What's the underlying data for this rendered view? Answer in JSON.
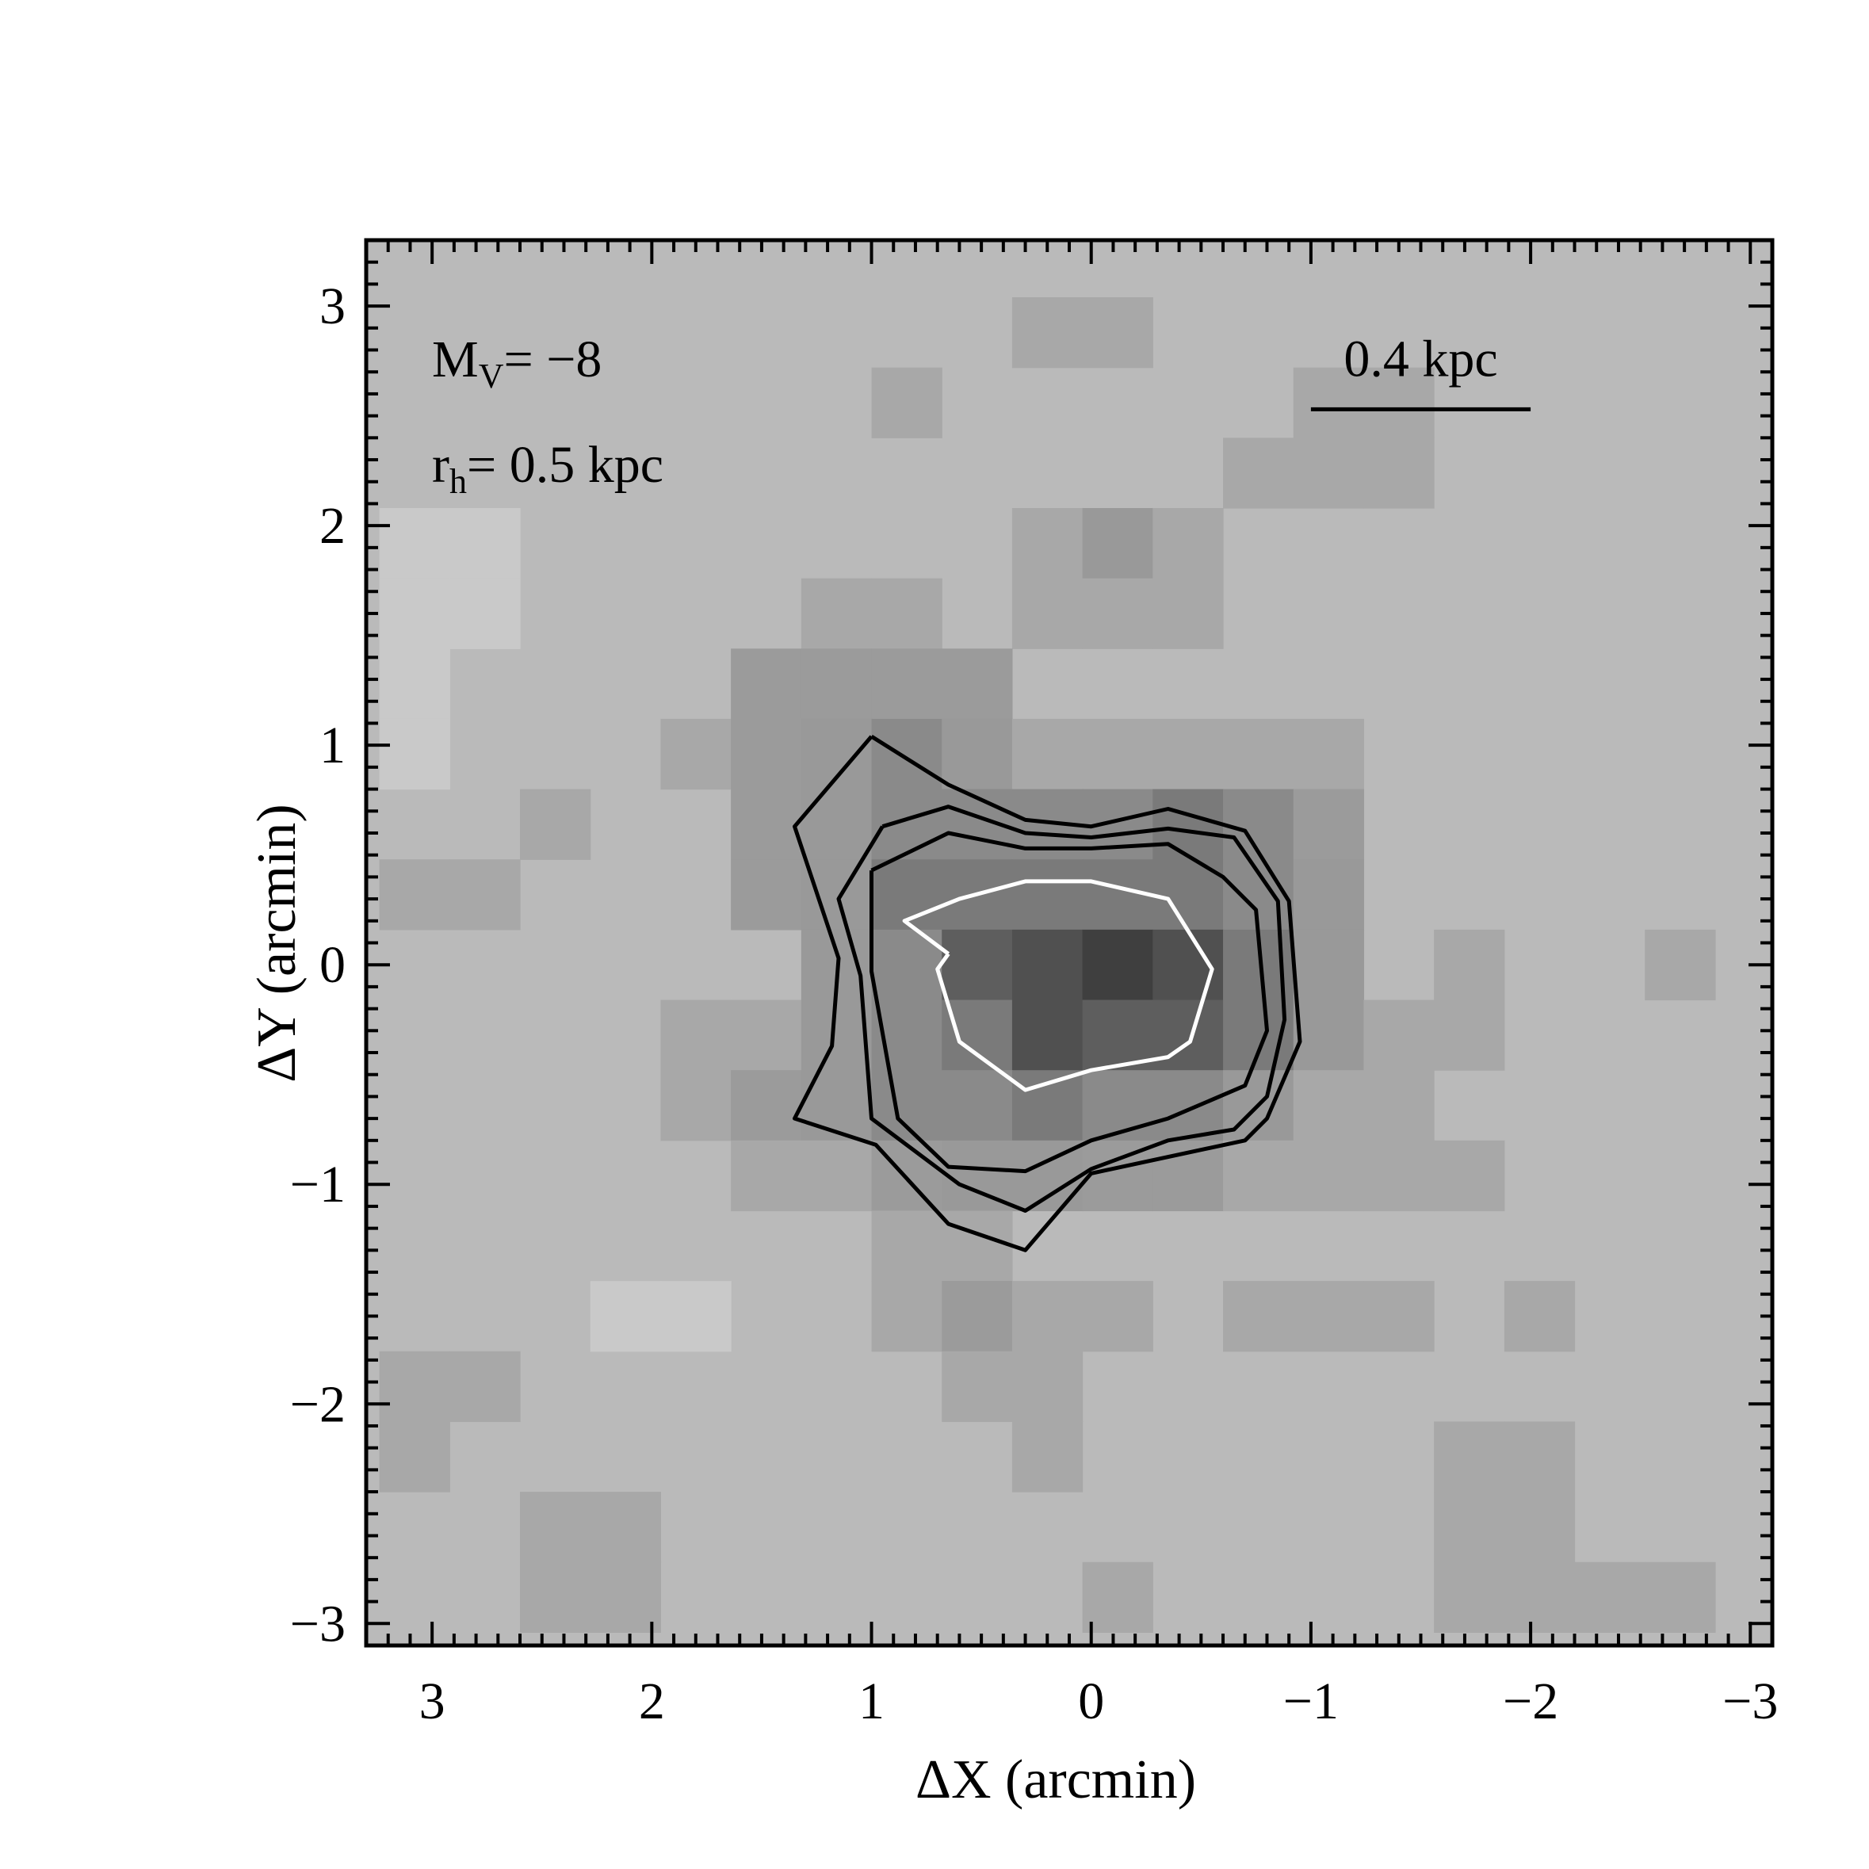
{
  "chart_data": {
    "type": "heatmap",
    "xlabel": "ΔX (arcmin)",
    "ylabel": "ΔY (arcmin)",
    "xlim": [
      3.3,
      -3.1
    ],
    "ylim": [
      -3.1,
      3.3
    ],
    "x_reversed": true,
    "xticks": [
      3,
      2,
      1,
      0,
      -1,
      -2,
      -3
    ],
    "xtick_labels": [
      "3",
      "2",
      "1",
      "0",
      "−1",
      "−2",
      "−3"
    ],
    "yticks": [
      -3,
      -2,
      -1,
      0,
      1,
      2,
      3
    ],
    "ytick_labels": [
      "−3",
      "−2",
      "−1",
      "0",
      "1",
      "2",
      "3"
    ],
    "grid": false,
    "colormap": "grayscale (darker = higher density)",
    "cell_size_arcmin": 0.32,
    "annotations": {
      "mv": {
        "prefix": "M",
        "sub": "V",
        "rest": "= −8"
      },
      "rh": {
        "prefix": "r",
        "sub": "h",
        "rest": "= 0.5 kpc"
      },
      "scale_bar": {
        "label": "0.4 kpc",
        "x_from": -1.0,
        "x_to": -2.0,
        "y": 2.53
      }
    },
    "cells": [
      {
        "x": 2.76,
        "y": 1.92,
        "v": 1
      },
      {
        "x": 2.76,
        "y": 1.6,
        "v": 1
      },
      {
        "x": 3.08,
        "y": 1.92,
        "v": 1
      },
      {
        "x": 3.08,
        "y": 1.6,
        "v": 1
      },
      {
        "x": 3.08,
        "y": 1.28,
        "v": 1
      },
      {
        "x": 3.08,
        "y": 0.96,
        "v": 1
      },
      {
        "x": 2.12,
        "y": -1.6,
        "v": 1
      },
      {
        "x": 1.8,
        "y": -1.6,
        "v": 1
      },
      {
        "x": 0.2,
        "y": 2.88,
        "v": 3
      },
      {
        "x": -0.12,
        "y": 2.88,
        "v": 3
      },
      {
        "x": 0.84,
        "y": 2.56,
        "v": 3
      },
      {
        "x": -1.08,
        "y": 2.56,
        "v": 3
      },
      {
        "x": -1.4,
        "y": 2.56,
        "v": 3
      },
      {
        "x": -0.76,
        "y": 2.24,
        "v": 3
      },
      {
        "x": -1.08,
        "y": 2.24,
        "v": 3
      },
      {
        "x": -1.4,
        "y": 2.24,
        "v": 3
      },
      {
        "x": 0.2,
        "y": 1.92,
        "v": 3
      },
      {
        "x": -0.12,
        "y": 1.92,
        "v": 5
      },
      {
        "x": -0.44,
        "y": 1.92,
        "v": 3
      },
      {
        "x": 1.16,
        "y": 1.6,
        "v": 3
      },
      {
        "x": 0.84,
        "y": 1.6,
        "v": 3
      },
      {
        "x": 0.2,
        "y": 1.6,
        "v": 3
      },
      {
        "x": -0.12,
        "y": 1.6,
        "v": 3
      },
      {
        "x": -0.44,
        "y": 1.6,
        "v": 3
      },
      {
        "x": 1.48,
        "y": 1.28,
        "v": 4
      },
      {
        "x": 1.16,
        "y": 1.28,
        "v": 4
      },
      {
        "x": 0.84,
        "y": 1.28,
        "v": 4
      },
      {
        "x": 0.52,
        "y": 1.28,
        "v": 4
      },
      {
        "x": 1.8,
        "y": 0.96,
        "v": 3
      },
      {
        "x": 1.48,
        "y": 0.96,
        "v": 4
      },
      {
        "x": 1.16,
        "y": 0.96,
        "v": 5
      },
      {
        "x": 0.84,
        "y": 0.96,
        "v": 6
      },
      {
        "x": 0.52,
        "y": 0.96,
        "v": 5
      },
      {
        "x": 0.2,
        "y": 0.96,
        "v": 3
      },
      {
        "x": -0.12,
        "y": 0.96,
        "v": 3
      },
      {
        "x": -0.44,
        "y": 0.96,
        "v": 3
      },
      {
        "x": -0.76,
        "y": 0.96,
        "v": 3
      },
      {
        "x": -1.08,
        "y": 0.96,
        "v": 3
      },
      {
        "x": 2.44,
        "y": 0.64,
        "v": 3
      },
      {
        "x": 1.48,
        "y": 0.64,
        "v": 4
      },
      {
        "x": 1.16,
        "y": 0.64,
        "v": 5
      },
      {
        "x": 0.84,
        "y": 0.64,
        "v": 6
      },
      {
        "x": 0.52,
        "y": 0.64,
        "v": 6
      },
      {
        "x": 0.2,
        "y": 0.64,
        "v": 6
      },
      {
        "x": -0.12,
        "y": 0.64,
        "v": 6
      },
      {
        "x": -0.44,
        "y": 0.64,
        "v": 7
      },
      {
        "x": -0.76,
        "y": 0.64,
        "v": 6
      },
      {
        "x": -1.08,
        "y": 0.64,
        "v": 4
      },
      {
        "x": 3.08,
        "y": 0.32,
        "v": 3
      },
      {
        "x": 2.76,
        "y": 0.32,
        "v": 3
      },
      {
        "x": 1.48,
        "y": 0.32,
        "v": 4
      },
      {
        "x": 1.16,
        "y": 0.32,
        "v": 5
      },
      {
        "x": 0.84,
        "y": 0.32,
        "v": 7
      },
      {
        "x": 0.52,
        "y": 0.32,
        "v": 7
      },
      {
        "x": 0.2,
        "y": 0.32,
        "v": 7
      },
      {
        "x": -0.12,
        "y": 0.32,
        "v": 7
      },
      {
        "x": -0.44,
        "y": 0.32,
        "v": 7
      },
      {
        "x": -0.76,
        "y": 0.32,
        "v": 6
      },
      {
        "x": -1.08,
        "y": 0.32,
        "v": 5
      },
      {
        "x": 1.16,
        "y": 0.0,
        "v": 5
      },
      {
        "x": 0.84,
        "y": 0.0,
        "v": 6
      },
      {
        "x": 0.52,
        "y": 0.0,
        "v": 8
      },
      {
        "x": 0.2,
        "y": 0.0,
        "v": 9
      },
      {
        "x": -0.12,
        "y": 0.0,
        "v": 10
      },
      {
        "x": -0.44,
        "y": 0.0,
        "v": 9
      },
      {
        "x": -0.76,
        "y": 0.0,
        "v": 7
      },
      {
        "x": -1.08,
        "y": 0.0,
        "v": 5
      },
      {
        "x": -1.72,
        "y": 0.0,
        "v": 3
      },
      {
        "x": -2.68,
        "y": 0.0,
        "v": 3
      },
      {
        "x": 1.8,
        "y": -0.32,
        "v": 3
      },
      {
        "x": 1.48,
        "y": -0.32,
        "v": 3
      },
      {
        "x": 1.16,
        "y": -0.32,
        "v": 5
      },
      {
        "x": 0.84,
        "y": -0.32,
        "v": 6
      },
      {
        "x": 0.52,
        "y": -0.32,
        "v": 7
      },
      {
        "x": 0.2,
        "y": -0.32,
        "v": 9
      },
      {
        "x": -0.12,
        "y": -0.32,
        "v": 8
      },
      {
        "x": -0.44,
        "y": -0.32,
        "v": 8
      },
      {
        "x": -0.76,
        "y": -0.32,
        "v": 7
      },
      {
        "x": -1.08,
        "y": -0.32,
        "v": 5
      },
      {
        "x": -1.4,
        "y": -0.32,
        "v": 3
      },
      {
        "x": -1.72,
        "y": -0.32,
        "v": 3
      },
      {
        "x": 1.8,
        "y": -0.64,
        "v": 3
      },
      {
        "x": 1.48,
        "y": -0.64,
        "v": 4
      },
      {
        "x": 1.16,
        "y": -0.64,
        "v": 5
      },
      {
        "x": 0.84,
        "y": -0.64,
        "v": 6
      },
      {
        "x": 0.52,
        "y": -0.64,
        "v": 6
      },
      {
        "x": 0.2,
        "y": -0.64,
        "v": 7
      },
      {
        "x": -0.12,
        "y": -0.64,
        "v": 6
      },
      {
        "x": -0.44,
        "y": -0.64,
        "v": 6
      },
      {
        "x": -0.76,
        "y": -0.64,
        "v": 5
      },
      {
        "x": -1.08,
        "y": -0.64,
        "v": 3
      },
      {
        "x": -1.4,
        "y": -0.64,
        "v": 3
      },
      {
        "x": 1.48,
        "y": -0.96,
        "v": 3
      },
      {
        "x": 1.16,
        "y": -0.96,
        "v": 3
      },
      {
        "x": 0.84,
        "y": -0.96,
        "v": 4
      },
      {
        "x": 0.52,
        "y": -0.96,
        "v": 5
      },
      {
        "x": 0.2,
        "y": -0.96,
        "v": 5
      },
      {
        "x": -0.12,
        "y": -0.96,
        "v": 4
      },
      {
        "x": -0.44,
        "y": -0.96,
        "v": 4
      },
      {
        "x": -0.76,
        "y": -0.96,
        "v": 3
      },
      {
        "x": -1.08,
        "y": -0.96,
        "v": 3
      },
      {
        "x": -1.4,
        "y": -0.96,
        "v": 3
      },
      {
        "x": -1.72,
        "y": -0.96,
        "v": 3
      },
      {
        "x": 0.84,
        "y": -1.28,
        "v": 3
      },
      {
        "x": 0.52,
        "y": -1.28,
        "v": 3
      },
      {
        "x": 0.84,
        "y": -1.6,
        "v": 3
      },
      {
        "x": 0.52,
        "y": -1.6,
        "v": 4
      },
      {
        "x": 0.2,
        "y": -1.6,
        "v": 3
      },
      {
        "x": -0.12,
        "y": -1.6,
        "v": 3
      },
      {
        "x": -0.76,
        "y": -1.6,
        "v": 3
      },
      {
        "x": -1.08,
        "y": -1.6,
        "v": 3
      },
      {
        "x": -1.4,
        "y": -1.6,
        "v": 3
      },
      {
        "x": -2.04,
        "y": -1.6,
        "v": 3
      },
      {
        "x": 3.08,
        "y": -1.92,
        "v": 3
      },
      {
        "x": 2.76,
        "y": -1.92,
        "v": 3
      },
      {
        "x": 0.52,
        "y": -1.92,
        "v": 3
      },
      {
        "x": 0.2,
        "y": -1.92,
        "v": 3
      },
      {
        "x": 3.08,
        "y": -2.24,
        "v": 3
      },
      {
        "x": 0.2,
        "y": -2.24,
        "v": 3
      },
      {
        "x": -1.72,
        "y": -2.24,
        "v": 3
      },
      {
        "x": -2.04,
        "y": -2.24,
        "v": 3
      },
      {
        "x": 2.44,
        "y": -2.56,
        "v": 3
      },
      {
        "x": 2.12,
        "y": -2.56,
        "v": 3
      },
      {
        "x": -1.72,
        "y": -2.56,
        "v": 3
      },
      {
        "x": -2.04,
        "y": -2.56,
        "v": 3
      },
      {
        "x": 2.44,
        "y": -2.88,
        "v": 3
      },
      {
        "x": 2.12,
        "y": -2.88,
        "v": 3
      },
      {
        "x": -0.12,
        "y": -2.88,
        "v": 3
      },
      {
        "x": -1.72,
        "y": -2.88,
        "v": 3
      },
      {
        "x": -2.04,
        "y": -2.88,
        "v": 3
      },
      {
        "x": -2.36,
        "y": -2.88,
        "v": 3
      },
      {
        "x": -2.68,
        "y": -2.88,
        "v": 3
      }
    ],
    "contours": [
      {
        "color": "#000000",
        "points": [
          [
            1.0,
            1.04
          ],
          [
            0.65,
            0.82
          ],
          [
            0.3,
            0.66
          ],
          [
            0.0,
            0.63
          ],
          [
            -0.35,
            0.71
          ],
          [
            -0.7,
            0.61
          ],
          [
            -0.9,
            0.29
          ],
          [
            -0.95,
            -0.35
          ],
          [
            -0.8,
            -0.7
          ],
          [
            -0.7,
            -0.8
          ],
          [
            0.0,
            -0.95
          ],
          [
            0.3,
            -1.3
          ],
          [
            0.65,
            -1.18
          ],
          [
            0.98,
            -0.82
          ],
          [
            1.35,
            -0.7
          ],
          [
            1.18,
            -0.37
          ],
          [
            1.15,
            0.03
          ],
          [
            1.35,
            0.63
          ],
          [
            1.0,
            1.04
          ]
        ]
      },
      {
        "color": "#000000",
        "points": [
          [
            0.95,
            0.63
          ],
          [
            0.65,
            0.72
          ],
          [
            0.3,
            0.6
          ],
          [
            0.0,
            0.58
          ],
          [
            -0.35,
            0.62
          ],
          [
            -0.65,
            0.58
          ],
          [
            -0.85,
            0.29
          ],
          [
            -0.88,
            -0.25
          ],
          [
            -0.8,
            -0.6
          ],
          [
            -0.65,
            -0.75
          ],
          [
            -0.35,
            -0.8
          ],
          [
            0.0,
            -0.93
          ],
          [
            0.3,
            -1.12
          ],
          [
            0.6,
            -1.0
          ],
          [
            1.0,
            -0.7
          ],
          [
            1.05,
            -0.05
          ],
          [
            1.15,
            0.3
          ],
          [
            0.95,
            0.63
          ]
        ]
      },
      {
        "color": "#000000",
        "points": [
          [
            1.0,
            0.43
          ],
          [
            0.65,
            0.6
          ],
          [
            0.3,
            0.53
          ],
          [
            0.0,
            0.53
          ],
          [
            -0.35,
            0.55
          ],
          [
            -0.6,
            0.4
          ],
          [
            -0.75,
            0.25
          ],
          [
            -0.8,
            -0.3
          ],
          [
            -0.7,
            -0.55
          ],
          [
            -0.35,
            -0.7
          ],
          [
            0.0,
            -0.8
          ],
          [
            0.3,
            -0.94
          ],
          [
            0.65,
            -0.92
          ],
          [
            0.88,
            -0.7
          ],
          [
            1.0,
            -0.03
          ],
          [
            1.0,
            0.43
          ]
        ]
      },
      {
        "color": "#ffffff",
        "points": [
          [
            0.65,
            0.05
          ],
          [
            0.85,
            0.2
          ],
          [
            0.6,
            0.3
          ],
          [
            0.3,
            0.38
          ],
          [
            0.0,
            0.38
          ],
          [
            -0.35,
            0.3
          ],
          [
            -0.55,
            -0.02
          ],
          [
            -0.45,
            -0.35
          ],
          [
            -0.35,
            -0.42
          ],
          [
            0.0,
            -0.48
          ],
          [
            0.3,
            -0.57
          ],
          [
            0.6,
            -0.35
          ],
          [
            0.7,
            -0.02
          ],
          [
            0.65,
            0.05
          ]
        ]
      }
    ]
  }
}
